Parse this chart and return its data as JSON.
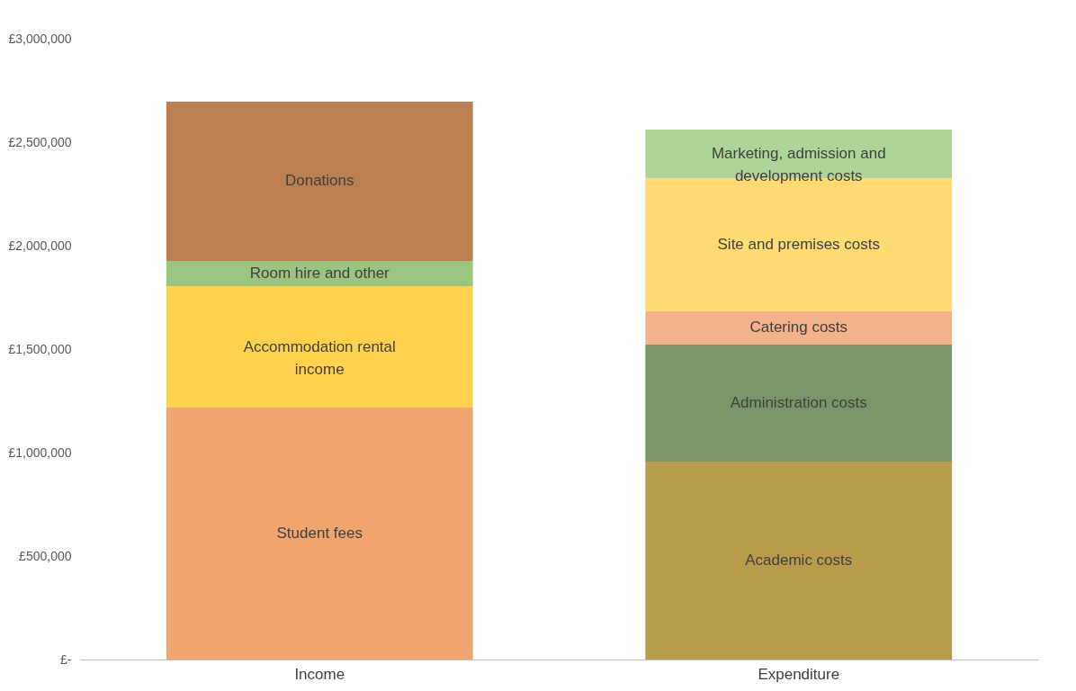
{
  "chart_data": {
    "type": "bar",
    "stacked": true,
    "categories": [
      "Income",
      "Expenditure"
    ],
    "series": [
      {
        "name": "Student fees",
        "color": "#f0a46e",
        "values": [
          1217000,
          null
        ]
      },
      {
        "name": "Accommodation rental income",
        "color": "#ffd24d",
        "values": [
          587000,
          null
        ]
      },
      {
        "name": "Room hire and other",
        "color": "#9bc47e",
        "values": [
          122000,
          null
        ]
      },
      {
        "name": "Donations",
        "color": "#bb7f52",
        "values": [
          770000,
          null
        ]
      },
      {
        "name": "Academic costs",
        "color": "#b89c4c",
        "values": [
          null,
          957000
        ]
      },
      {
        "name": "Administration costs",
        "color": "#7a956a",
        "values": [
          null,
          565000
        ]
      },
      {
        "name": "Catering costs",
        "color": "#f4b28a",
        "values": [
          null,
          161000
        ]
      },
      {
        "name": "Site and premises costs",
        "color": "#fedb73",
        "values": [
          null,
          643000
        ]
      },
      {
        "name": "Marketing, admission and development costs",
        "color": "#aed597",
        "values": [
          null,
          235000
        ]
      }
    ],
    "ylim": [
      0,
      3000000
    ],
    "yticks": [
      {
        "value": 0,
        "label": "£-"
      },
      {
        "value": 500000,
        "label": "£500,000"
      },
      {
        "value": 1000000,
        "label": "£1,000,000"
      },
      {
        "value": 1500000,
        "label": "£1,500,000"
      },
      {
        "value": 2000000,
        "label": "£2,000,000"
      },
      {
        "value": 2500000,
        "label": "£2,500,000"
      },
      {
        "value": 3000000,
        "label": "£3,000,000"
      }
    ],
    "grid": false,
    "legend": false
  }
}
